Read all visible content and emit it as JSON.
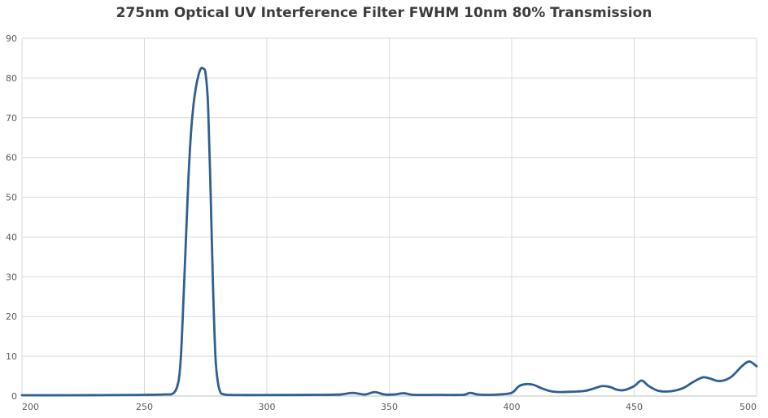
{
  "chart_data": {
    "type": "line",
    "title": "275nm Optical UV Interference Filter FWHM 10nm 80% Transmission",
    "xlabel": "",
    "ylabel": "",
    "xlim": [
      200,
      500
    ],
    "ylim": [
      0,
      90
    ],
    "x_ticks": [
      200,
      250,
      300,
      350,
      400,
      450,
      500
    ],
    "y_ticks": [
      0,
      10,
      20,
      30,
      40,
      50,
      60,
      70,
      80,
      90
    ],
    "grid": true,
    "legend": "none",
    "series_color": "#2e5f91",
    "series": [
      {
        "x": [
          200,
          220,
          240,
          250,
          258,
          262,
          264,
          265,
          266,
          267,
          268,
          269,
          270,
          271,
          272,
          273,
          274,
          275,
          276,
          277,
          278,
          279,
          280,
          281,
          282,
          284,
          290,
          300,
          320,
          330,
          335,
          340,
          344,
          348,
          352,
          356,
          360,
          370,
          380,
          383,
          386,
          390,
          395,
          400,
          403,
          406,
          409,
          412,
          416,
          420,
          425,
          430,
          434,
          437,
          440,
          443,
          446,
          450,
          453,
          456,
          460,
          465,
          470,
          474,
          478,
          481,
          484,
          487,
          490,
          494,
          497,
          500
        ],
        "y": [
          0.2,
          0.2,
          0.25,
          0.3,
          0.4,
          0.8,
          4,
          11,
          25,
          40,
          55,
          66,
          73,
          77.5,
          80.5,
          82.3,
          82.4,
          81,
          73,
          52,
          28,
          10,
          3.5,
          1,
          0.5,
          0.3,
          0.25,
          0.25,
          0.3,
          0.4,
          0.8,
          0.4,
          1,
          0.4,
          0.4,
          0.7,
          0.3,
          0.3,
          0.3,
          0.8,
          0.4,
          0.3,
          0.4,
          0.8,
          2.5,
          3,
          2.8,
          2,
          1.2,
          1,
          1.1,
          1.3,
          2,
          2.5,
          2.3,
          1.6,
          1.5,
          2.5,
          3.9,
          2.5,
          1.3,
          1.2,
          2,
          3.5,
          4.7,
          4.4,
          3.8,
          4,
          5,
          7.5,
          8.7,
          7.5
        ]
      }
    ]
  }
}
